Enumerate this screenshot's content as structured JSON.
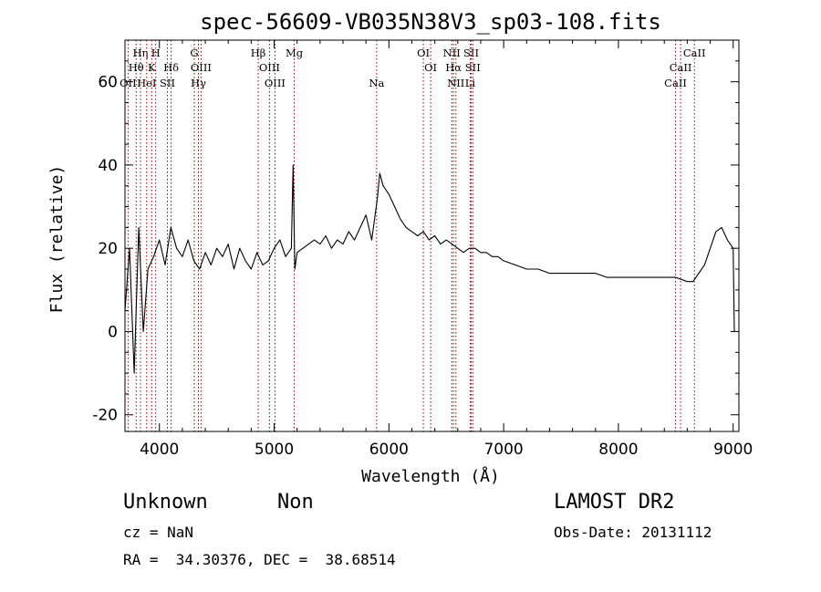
{
  "chart_data": {
    "type": "line",
    "title": "spec-56609-VB035N38V3_sp03-108.fits",
    "xlabel": "Wavelength (Å)",
    "ylabel": "Flux (relative)",
    "xlim": [
      3700,
      9050
    ],
    "ylim": [
      -24,
      70
    ],
    "xticks": [
      4000,
      5000,
      6000,
      7000,
      8000,
      9000
    ],
    "yticks": [
      -20,
      0,
      20,
      40,
      60
    ],
    "series": [
      {
        "x": [
          3700,
          3740,
          3780,
          3820,
          3860,
          3900,
          3950,
          4000,
          4050,
          4100,
          4150,
          4200,
          4250,
          4300,
          4350,
          4400,
          4450,
          4500,
          4550,
          4600,
          4650,
          4700,
          4750,
          4800,
          4850,
          4900,
          4950,
          5000,
          5050,
          5100,
          5150,
          5165,
          5180,
          5200,
          5250,
          5300,
          5350,
          5400,
          5450,
          5500,
          5550,
          5600,
          5650,
          5700,
          5750,
          5800,
          5850,
          5900,
          5920,
          5950,
          6000,
          6050,
          6100,
          6150,
          6200,
          6250,
          6300,
          6350,
          6400,
          6450,
          6500,
          6550,
          6600,
          6650,
          6700,
          6750,
          6800,
          6850,
          6900,
          6950,
          7000,
          7100,
          7200,
          7300,
          7400,
          7500,
          7600,
          7700,
          7800,
          7900,
          8000,
          8100,
          8200,
          8300,
          8400,
          8500,
          8600,
          8650,
          8700,
          8750,
          8800,
          8850,
          8900,
          8950,
          9000,
          9010
        ],
        "y": [
          5,
          20,
          -10,
          25,
          0,
          15,
          18,
          22,
          16,
          25,
          20,
          18,
          22,
          17,
          15,
          19,
          16,
          20,
          18,
          21,
          15,
          20,
          17,
          15,
          19,
          16,
          17,
          20,
          22,
          18,
          20,
          40,
          15,
          19,
          20,
          21,
          22,
          21,
          23,
          20,
          22,
          21,
          24,
          22,
          25,
          28,
          22,
          32,
          38,
          35,
          33,
          30,
          27,
          25,
          24,
          23,
          24,
          22,
          23,
          21,
          22,
          21,
          20,
          19,
          20,
          20,
          19,
          19,
          18,
          18,
          17,
          16,
          15,
          15,
          14,
          14,
          14,
          14,
          14,
          13,
          13,
          13,
          13,
          13,
          13,
          13,
          12,
          12,
          14,
          16,
          20,
          24,
          25,
          22,
          20,
          0
        ]
      }
    ],
    "lines": [
      {
        "label": "Hη",
        "x": 3835,
        "row": 1
      },
      {
        "label": "H",
        "x": 3968,
        "row": 1
      },
      {
        "label": "Hθ",
        "x": 3797,
        "row": 2
      },
      {
        "label": "K",
        "x": 3933,
        "row": 2
      },
      {
        "label": "Hδ",
        "x": 4102,
        "row": 2
      },
      {
        "label": "OII",
        "x": 3727,
        "row": 3
      },
      {
        "label": "HeI",
        "x": 3889,
        "row": 3
      },
      {
        "label": "SII",
        "x": 4070,
        "row": 3
      },
      {
        "label": "G",
        "x": 4304,
        "row": 1
      },
      {
        "label": "OIII",
        "x": 4363,
        "row": 2
      },
      {
        "label": "Hγ",
        "x": 4340,
        "row": 3
      },
      {
        "label": "Hβ",
        "x": 4861,
        "row": 1
      },
      {
        "label": "OIII",
        "x": 4959,
        "row": 2
      },
      {
        "label": "OIII",
        "x": 5007,
        "row": 3
      },
      {
        "label": "Mg",
        "x": 5175,
        "row": 1
      },
      {
        "label": "Na",
        "x": 5893,
        "row": 3
      },
      {
        "label": "OI",
        "x": 6300,
        "row": 1
      },
      {
        "label": "OI",
        "x": 6364,
        "row": 2
      },
      {
        "label": "NII",
        "x": 6548,
        "row": 1
      },
      {
        "label": "Hα",
        "x": 6563,
        "row": 2
      },
      {
        "label": "NII",
        "x": 6584,
        "row": 3
      },
      {
        "label": "SII",
        "x": 6717,
        "row": 1
      },
      {
        "label": "SII",
        "x": 6731,
        "row": 2
      },
      {
        "label": "Li",
        "x": 6708,
        "row": 3
      },
      {
        "label": "CaII",
        "x": 8662,
        "row": 1
      },
      {
        "label": "CaII",
        "x": 8542,
        "row": 2
      },
      {
        "label": "CaII",
        "x": 8498,
        "row": 3
      }
    ],
    "line_color": "#8b0000"
  },
  "info": {
    "class": "Unknown",
    "subclass": "Non",
    "survey": "LAMOST DR2",
    "cz": "cz = NaN",
    "obs_date": "Obs-Date: 20131112",
    "radec": "RA =  34.30376, DEC =  38.68514"
  }
}
